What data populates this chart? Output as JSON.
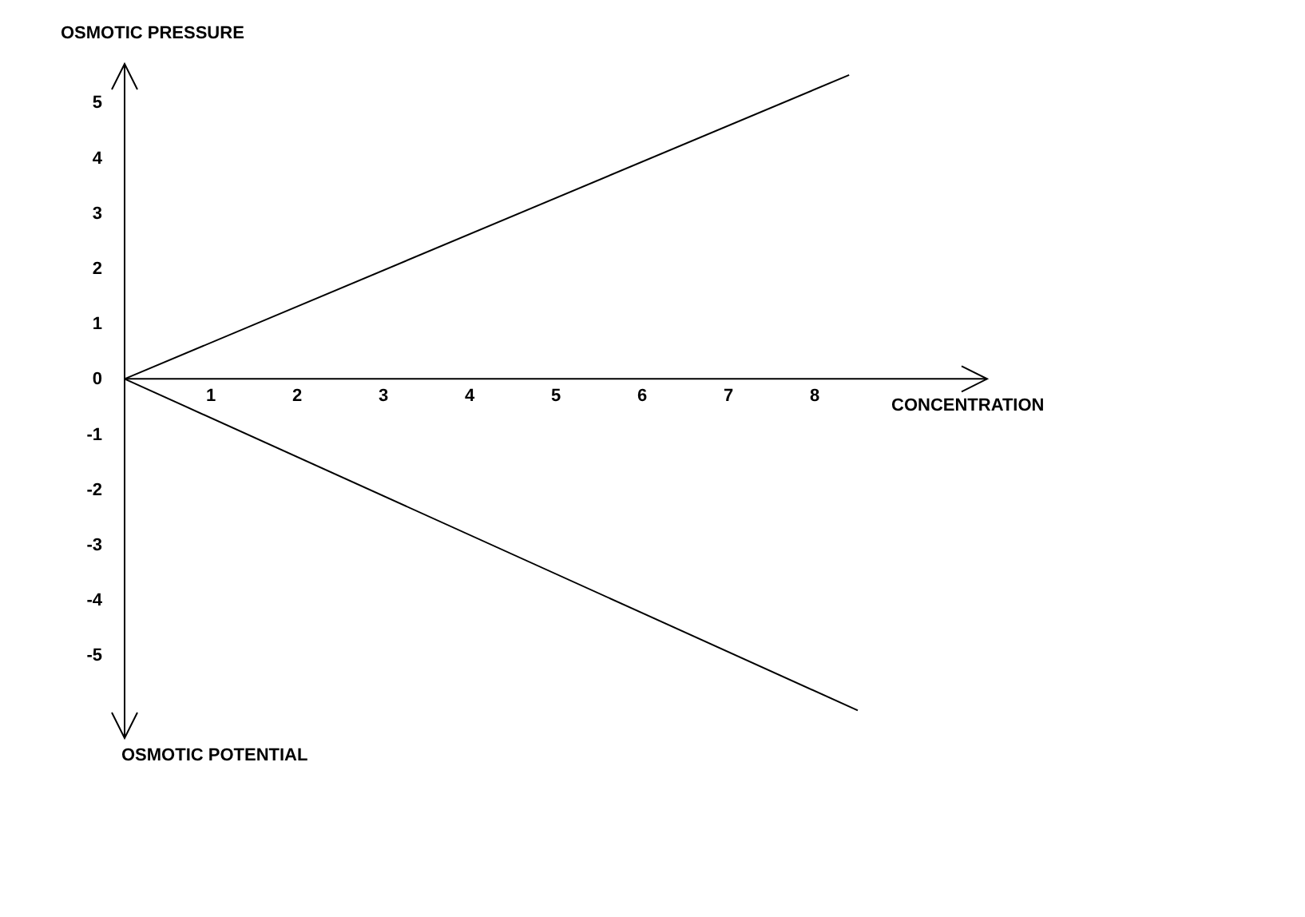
{
  "chart_data": {
    "type": "line",
    "xlabel": "CONCENTRATION",
    "ylabel": "OSMOTIC PRESSURE",
    "annotations": [
      "OSMOTIC POTENTIAL"
    ],
    "xlim": [
      0,
      10
    ],
    "xticks": [
      1,
      2,
      3,
      4,
      5,
      6,
      7,
      8
    ],
    "ylim": [
      -6.5,
      5.7
    ],
    "yticks": [
      -5,
      -4,
      -3,
      -2,
      -1,
      0,
      1,
      2,
      3,
      4,
      5
    ],
    "grid": false,
    "marker": "none",
    "line_style": "solid",
    "series": [
      {
        "color": "#000000",
        "x": [
          0,
          8.4
        ],
        "values": [
          0,
          5.5
        ]
      },
      {
        "color": "#000000",
        "x": [
          0,
          8.5
        ],
        "values": [
          0,
          -6
        ]
      }
    ]
  }
}
